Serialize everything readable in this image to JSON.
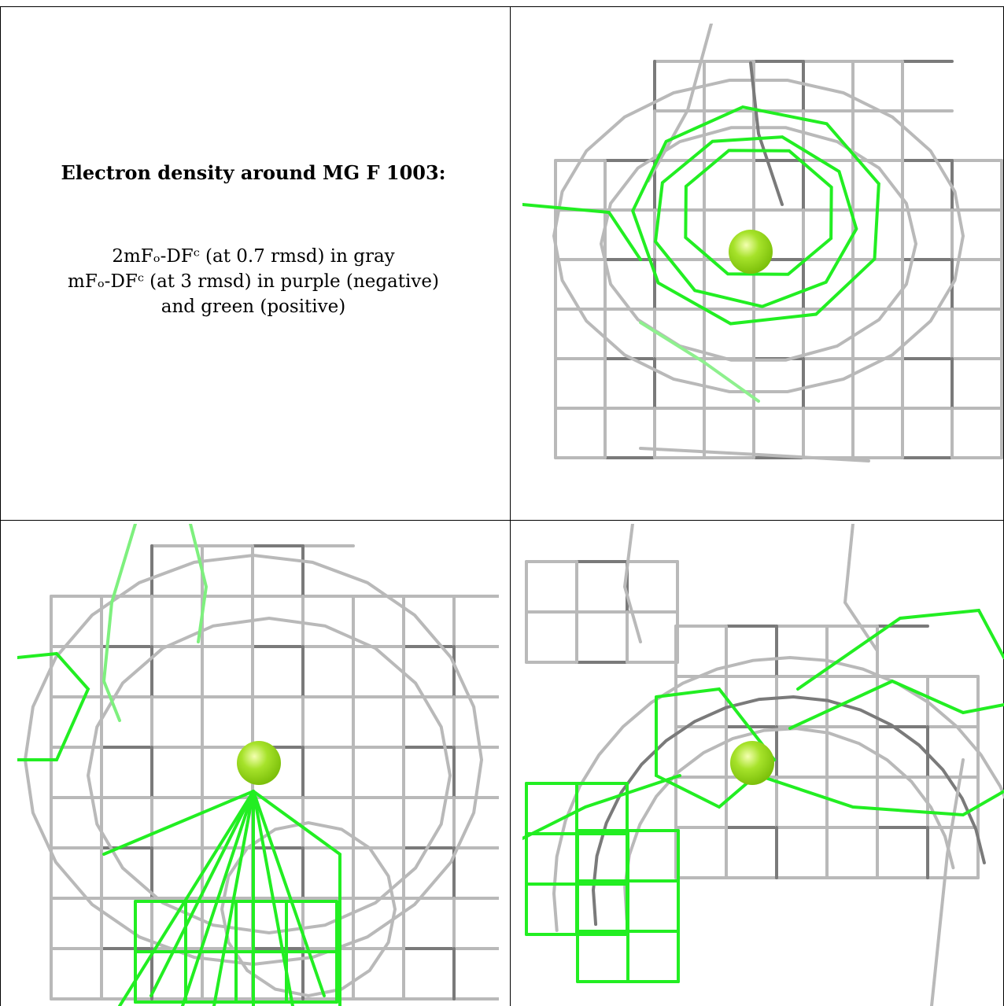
{
  "caption": {
    "title": "Electron density around MG F 1003:",
    "legend_lines": [
      "2mFₒ-DFᶜ (at 0.7 rmsd) in gray",
      "mFₒ-DFᶜ (at 3 rmsd) in purple (negative)",
      "and green (positive)"
    ]
  },
  "colors": {
    "gray_mesh": "#b9b9b9",
    "dark_mesh": "#7a7a7a",
    "green_mesh": "#22ee22",
    "sphere": "#a6e22a",
    "sphere_dark": "#7cc00a"
  },
  "panels": [
    {
      "name": "view-top-right"
    },
    {
      "name": "view-bottom-left"
    },
    {
      "name": "view-bottom-right"
    }
  ]
}
